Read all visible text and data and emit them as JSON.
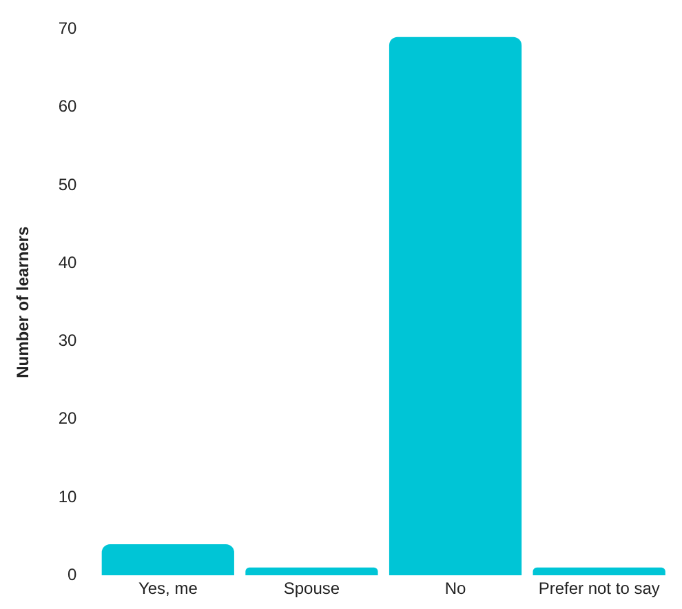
{
  "chart_data": {
    "type": "bar",
    "ylabel": "Number of learners",
    "categories": [
      "Yes, me",
      "Spouse",
      "No",
      "Prefer not to say"
    ],
    "values": [
      4,
      1,
      69,
      1
    ],
    "color": "#00c5d6",
    "ylim": [
      0,
      70
    ],
    "yticks": [
      0,
      10,
      20,
      30,
      40,
      50,
      60,
      70
    ],
    "grid": false,
    "legend": false
  }
}
